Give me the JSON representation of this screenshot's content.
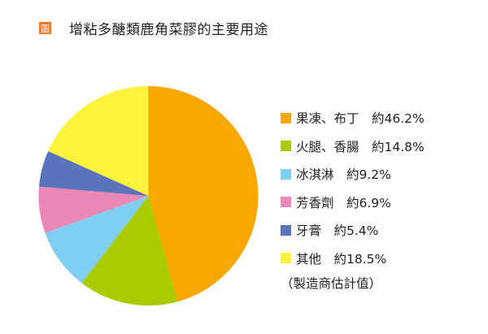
{
  "figure": {
    "icon_label": "圖",
    "title": "增粘多醣類鹿角菜膠的主要用途",
    "note": "（製造商估計值）"
  },
  "colors": {
    "icon": "#ec7a2c"
  },
  "legend": [
    {
      "label": "果凍、布丁",
      "value_text": "約46.2%",
      "display": "果凍、布丁　約46.2%",
      "color": "#f6a800"
    },
    {
      "label": "火腿、香腸",
      "value_text": "約14.8%",
      "display": "火腿、香腸　約14.8%",
      "color": "#a9cb00"
    },
    {
      "label": "冰淇淋",
      "value_text": "約9.2%",
      "display": "冰淇淋　約9.2%",
      "color": "#7fcff3"
    },
    {
      "label": "芳香劑",
      "value_text": "約6.9%",
      "display": "芳香劑　約6.9%",
      "color": "#ec88b6"
    },
    {
      "label": "牙膏",
      "value_text": "約5.4%",
      "display": "牙膏　約5.4%",
      "color": "#5974bb"
    },
    {
      "label": "其他",
      "value_text": "約18.5%",
      "display": "其他　約18.5%",
      "color": "#fff23a"
    }
  ],
  "chart_data": {
    "type": "pie",
    "title": "增粘多醣類鹿角菜膠的主要用途",
    "categories": [
      "果凍、布丁",
      "火腿、香腸",
      "冰淇淋",
      "芳香劑",
      "牙膏",
      "其他"
    ],
    "values": [
      46.2,
      14.8,
      9.2,
      6.9,
      5.4,
      18.5
    ],
    "unit": "%",
    "colors": [
      "#f6a800",
      "#a9cb00",
      "#7fcff3",
      "#ec88b6",
      "#5974bb",
      "#fff23a"
    ],
    "start_angle": "12 o'clock",
    "direction": "clockwise",
    "legend_position": "right",
    "annotation": "（製造商估計值）"
  }
}
